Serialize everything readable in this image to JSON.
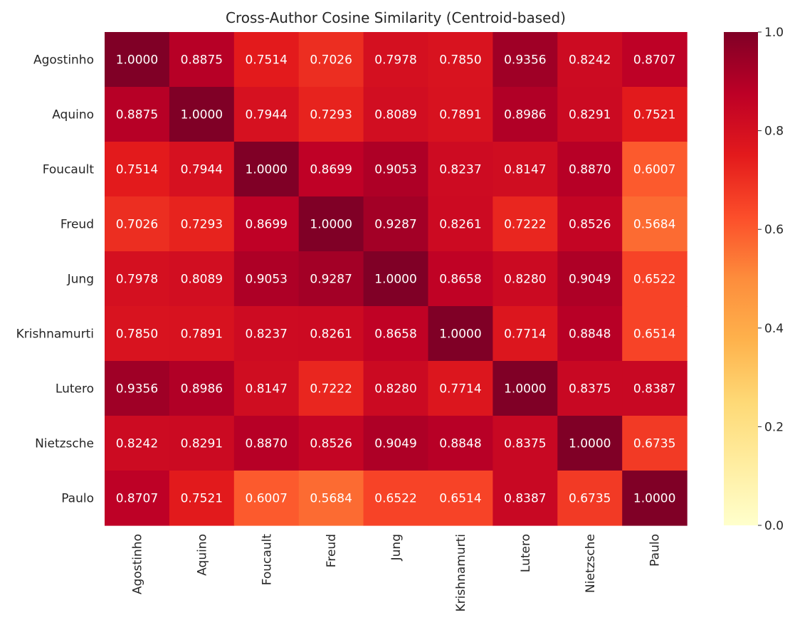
{
  "chart_data": {
    "type": "heatmap",
    "title": "Cross-Author Cosine Similarity (Centroid-based)",
    "xlabel": "",
    "ylabel": "",
    "categories": [
      "Agostinho",
      "Aquino",
      "Foucault",
      "Freud",
      "Jung",
      "Krishnamurti",
      "Lutero",
      "Nietzsche",
      "Paulo"
    ],
    "values": [
      [
        1.0,
        0.8875,
        0.7514,
        0.7026,
        0.7978,
        0.785,
        0.9356,
        0.8242,
        0.8707
      ],
      [
        0.8875,
        1.0,
        0.7944,
        0.7293,
        0.8089,
        0.7891,
        0.8986,
        0.8291,
        0.7521
      ],
      [
        0.7514,
        0.7944,
        1.0,
        0.8699,
        0.9053,
        0.8237,
        0.8147,
        0.887,
        0.6007
      ],
      [
        0.7026,
        0.7293,
        0.8699,
        1.0,
        0.9287,
        0.8261,
        0.7222,
        0.8526,
        0.5684
      ],
      [
        0.7978,
        0.8089,
        0.9053,
        0.9287,
        1.0,
        0.8658,
        0.828,
        0.9049,
        0.6522
      ],
      [
        0.785,
        0.7891,
        0.8237,
        0.8261,
        0.8658,
        1.0,
        0.7714,
        0.8848,
        0.6514
      ],
      [
        0.9356,
        0.8986,
        0.8147,
        0.7222,
        0.828,
        0.7714,
        1.0,
        0.8375,
        0.8387
      ],
      [
        0.8242,
        0.8291,
        0.887,
        0.8526,
        0.9049,
        0.8848,
        0.8375,
        1.0,
        0.6735
      ],
      [
        0.8707,
        0.7521,
        0.6007,
        0.5684,
        0.6522,
        0.6514,
        0.8387,
        0.6735,
        1.0
      ]
    ],
    "value_format_decimals": 4,
    "colormap": "YlOrRd",
    "colorbar": {
      "range": [
        0.0,
        1.0
      ],
      "ticks": [
        0.0,
        0.2,
        0.4,
        0.6,
        0.8,
        1.0
      ],
      "tick_labels": [
        "0.0",
        "0.2",
        "0.4",
        "0.6",
        "0.8",
        "1.0"
      ]
    },
    "grid": false,
    "legend": "colorbar-right"
  }
}
